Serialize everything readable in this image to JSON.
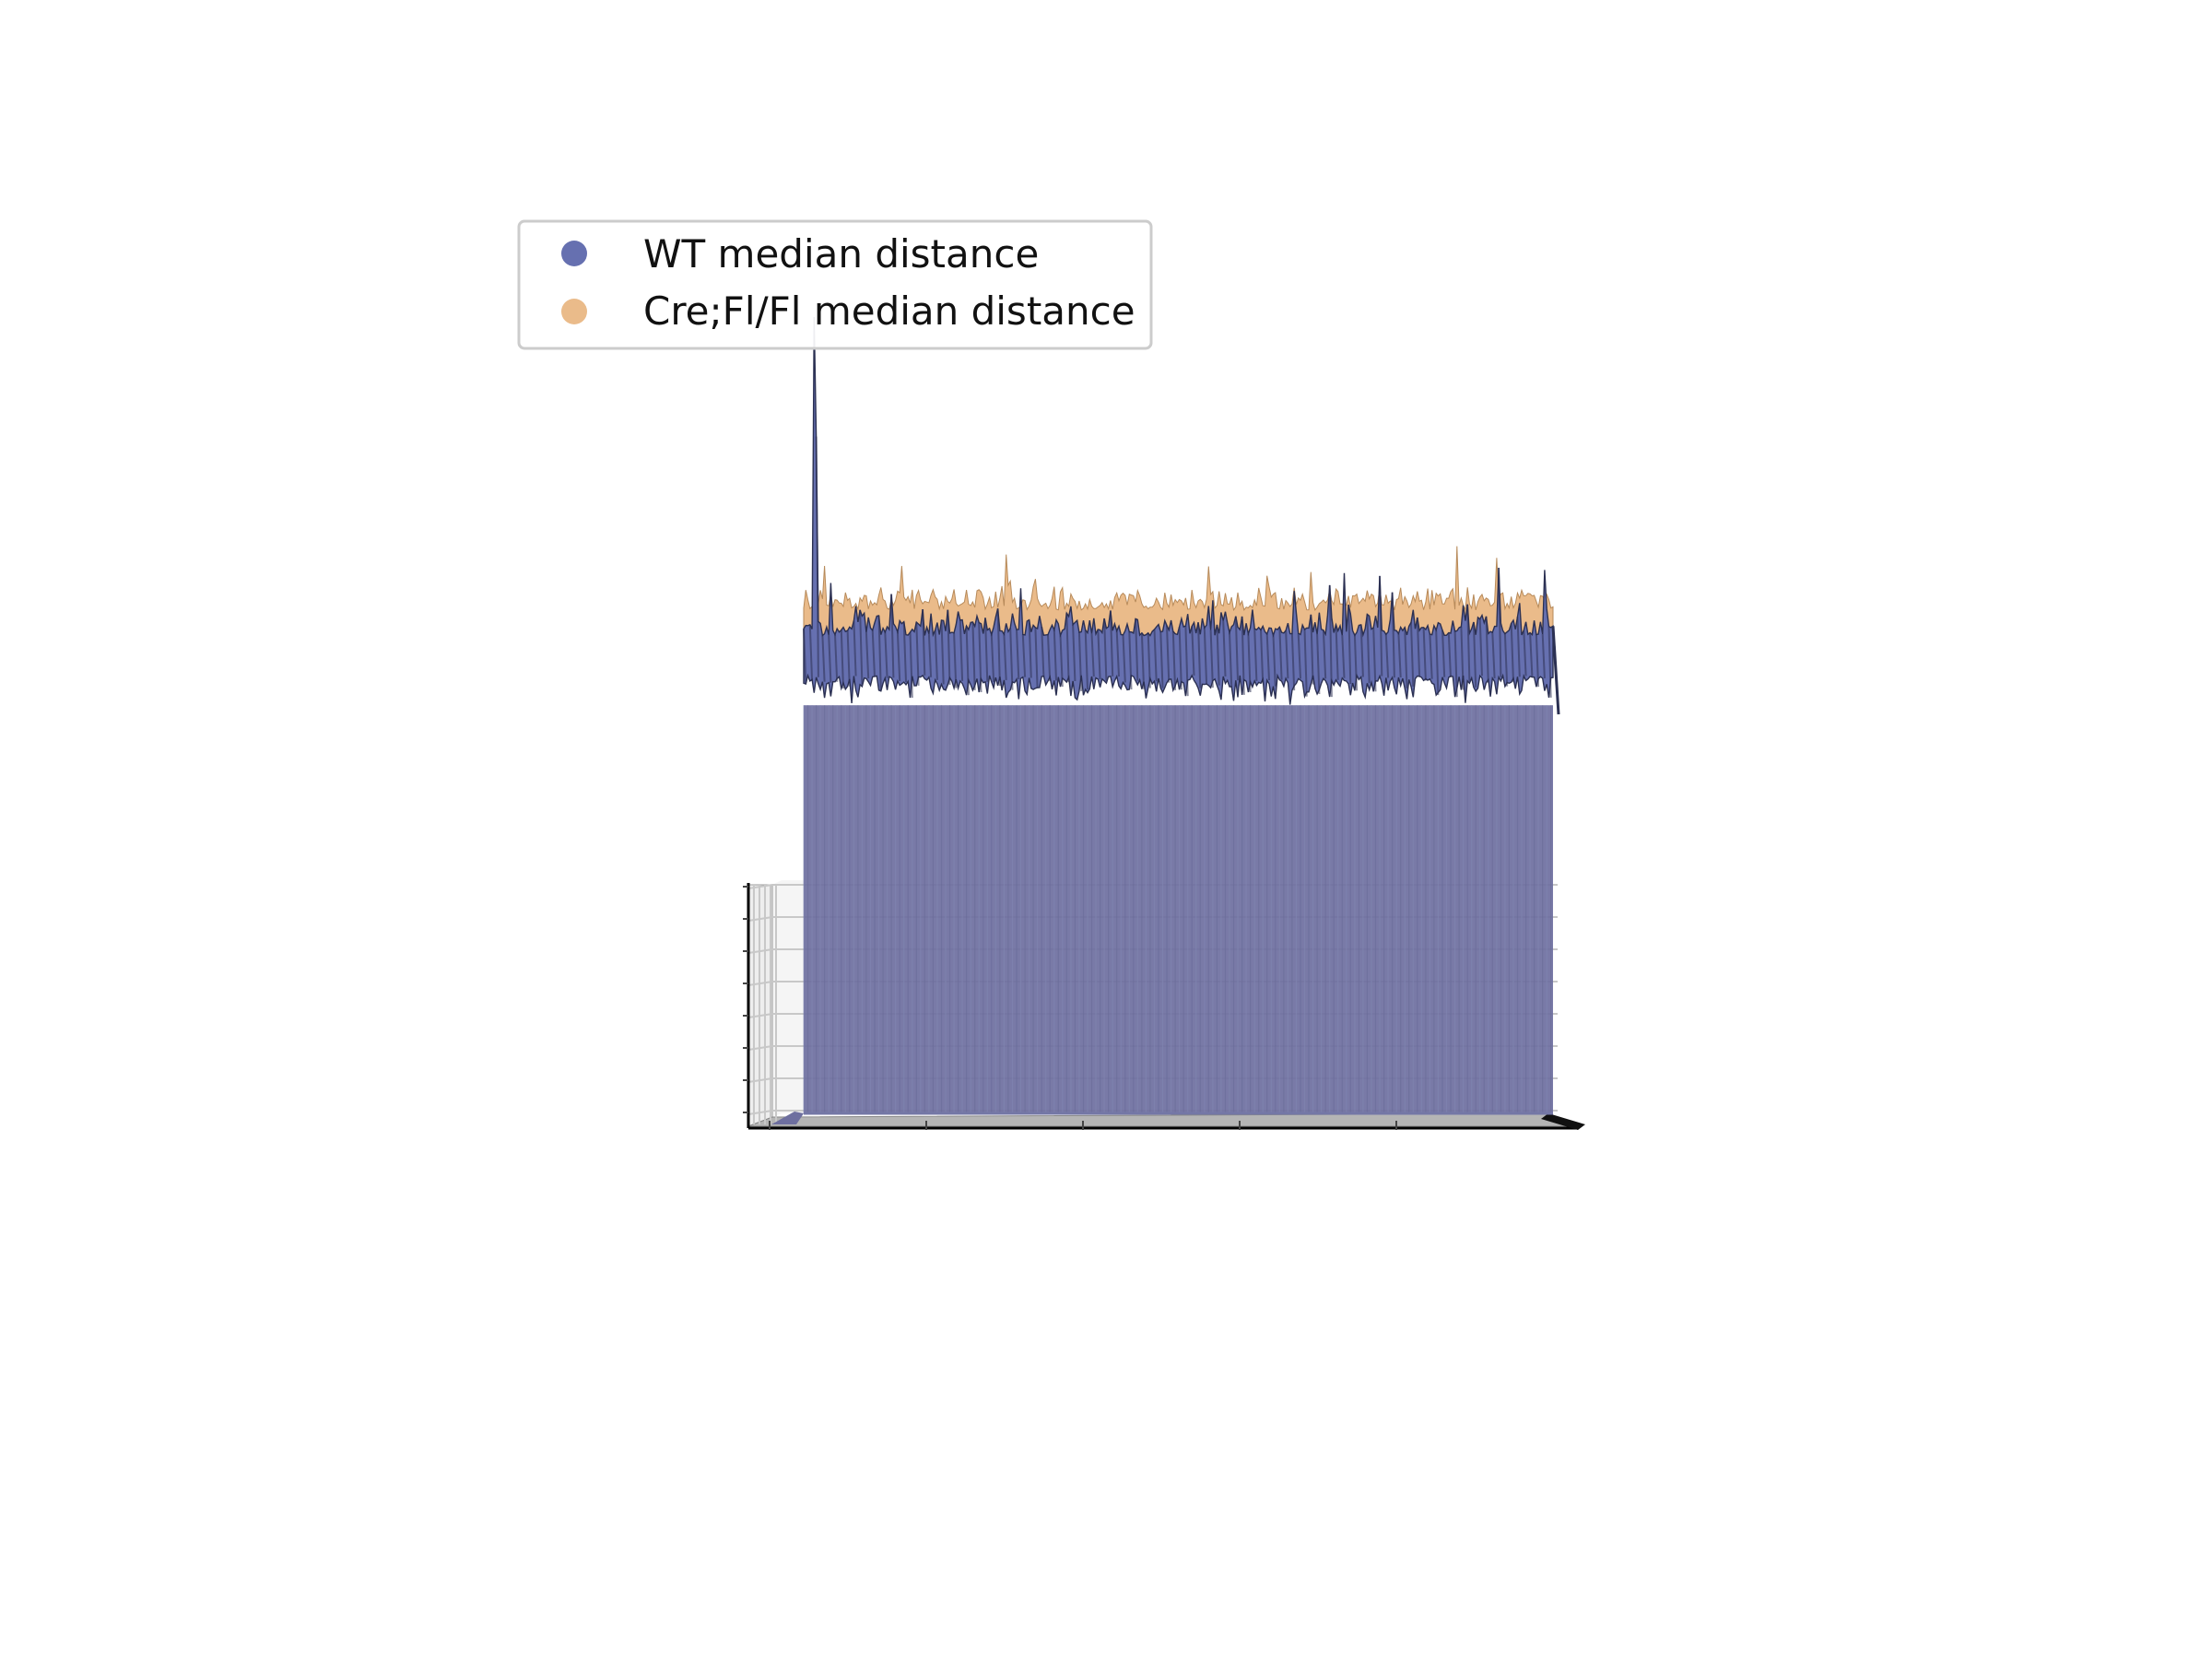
{
  "chart_data": {
    "type": "area",
    "title": "",
    "xlabel": "",
    "ylabel": "",
    "zlabel": "",
    "grid": true,
    "legend_position": "top-left",
    "colors": {
      "wt": "#6670b0",
      "cre": "#eabb8a",
      "edge": "#2b3052",
      "pane": "#f2f2f2",
      "grid": "#c8c8c8"
    },
    "series": [
      {
        "key": "wt",
        "name": "WT median distance",
        "base_level": 7.2,
        "spread": 1.0,
        "peak": {
          "position": 0.015,
          "value": 12.0
        }
      },
      {
        "key": "cre",
        "name": "Cre;Fl/Fl median distance",
        "base_level": 7.5,
        "spread": 0.9
      }
    ],
    "zlim": [
      0,
      13
    ]
  }
}
